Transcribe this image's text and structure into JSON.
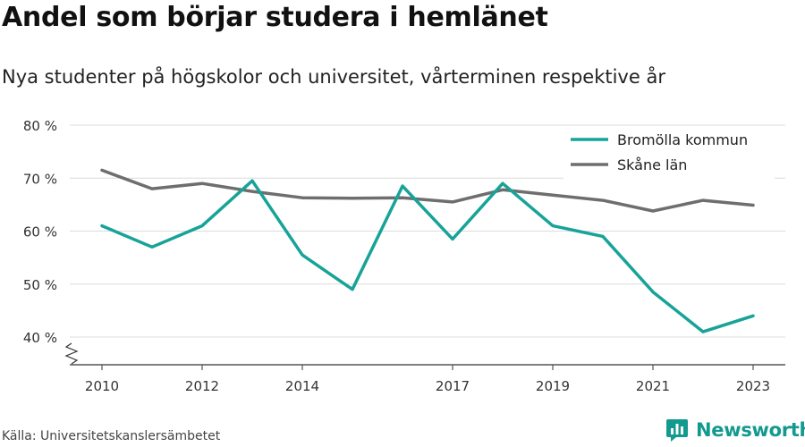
{
  "header": {
    "title": "Andel som börjar studera i hemlänet",
    "subtitle": "Nya studenter på högskolor och universitet, vårterminen respektive år"
  },
  "footer": {
    "source": "Källa: Universitetskanslersämbetet",
    "brand": "Newsworthy",
    "brand_icon": "bar-chart-logo-icon"
  },
  "colors": {
    "bromolla": "#17a398",
    "skane": "#6e6e6e",
    "grid": "#dcdcdc",
    "axis": "#555555",
    "brand": "#129a8f"
  },
  "chart_data": {
    "type": "line",
    "title": "Andel som börjar studera i hemlänet",
    "subtitle": "Nya studenter på högskolor och universitet, vårterminen respektive år",
    "x": [
      2010,
      2011,
      2012,
      2013,
      2014,
      2015,
      2016,
      2017,
      2018,
      2019,
      2020,
      2021,
      2022,
      2023
    ],
    "x_tick_labels": [
      "2010",
      "2012",
      "2014",
      "2017",
      "2019",
      "2021",
      "2023"
    ],
    "x_tick_values": [
      2010,
      2012,
      2014,
      2017,
      2019,
      2021,
      2023
    ],
    "y_tick_labels": [
      "40 %",
      "50 %",
      "60 %",
      "70 %",
      "80 %"
    ],
    "y_tick_values": [
      40,
      50,
      60,
      70,
      80
    ],
    "ylim": [
      35,
      80
    ],
    "y_axis_break": true,
    "grid": true,
    "legend_position": "top-right",
    "series": [
      {
        "name": "Bromölla kommun",
        "color": "#17a398",
        "values": [
          61,
          57,
          61,
          69.5,
          55.5,
          49,
          68.5,
          58.5,
          69,
          61,
          59,
          48.5,
          41,
          44
        ]
      },
      {
        "name": "Skåne län",
        "color": "#6e6e6e",
        "values": [
          71.5,
          68,
          69,
          67.5,
          66.3,
          66.2,
          66.3,
          65.5,
          67.8,
          66.8,
          65.8,
          63.8,
          65.8,
          64.9
        ]
      }
    ]
  }
}
